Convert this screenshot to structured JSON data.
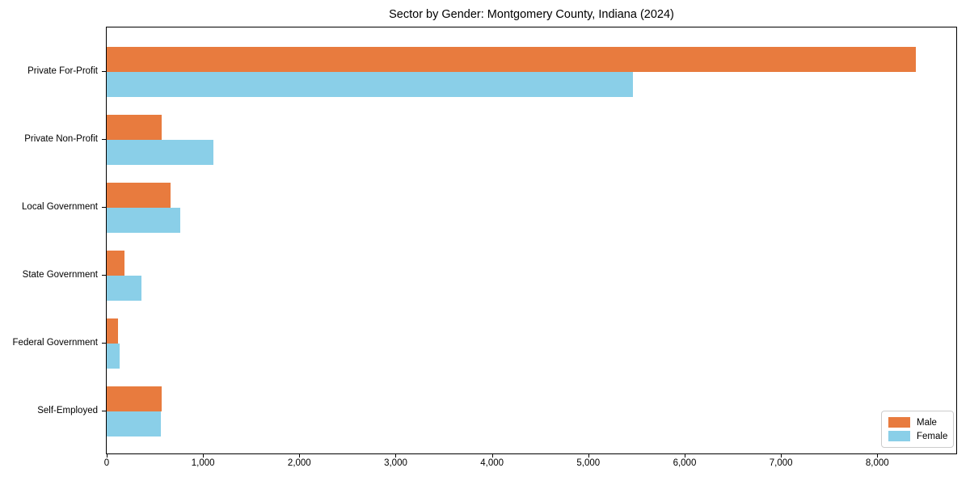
{
  "figure": {
    "background": "#ffffff",
    "axis_color": "#000000"
  },
  "chart_data": {
    "type": "bar",
    "orientation": "horizontal",
    "title": "Sector by Gender: Montgomery County, Indiana (2024)",
    "categories": [
      "Private For-Profit",
      "Private Non-Profit",
      "Local Government",
      "State Government",
      "Federal Government",
      "Self-Employed"
    ],
    "series": [
      {
        "name": "Male",
        "color": "#e87b3e",
        "values": [
          8400,
          570,
          660,
          185,
          115,
          570
        ]
      },
      {
        "name": "Female",
        "color": "#8acfe8",
        "values": [
          5460,
          1110,
          760,
          360,
          135,
          560
        ]
      }
    ],
    "xlabel": "",
    "ylabel": "",
    "xlim": [
      0,
      8820
    ],
    "x_ticks": [
      {
        "value": 0,
        "label": "0"
      },
      {
        "value": 1000,
        "label": "1,000"
      },
      {
        "value": 2000,
        "label": "2,000"
      },
      {
        "value": 3000,
        "label": "3,000"
      },
      {
        "value": 4000,
        "label": "4,000"
      },
      {
        "value": 5000,
        "label": "5,000"
      },
      {
        "value": 6000,
        "label": "6,000"
      },
      {
        "value": 7000,
        "label": "7,000"
      },
      {
        "value": 8000,
        "label": "8,000"
      }
    ],
    "grid": false,
    "legend_position": "lower-right"
  },
  "legend": {
    "entries": [
      {
        "label": "Male",
        "color": "#e87b3e"
      },
      {
        "label": "Female",
        "color": "#8acfe8"
      }
    ]
  }
}
